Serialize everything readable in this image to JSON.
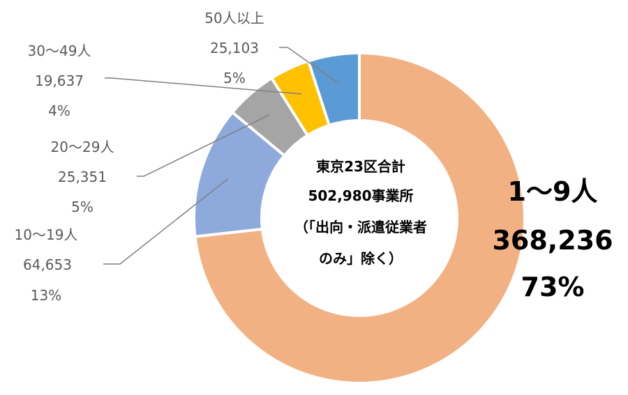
{
  "chart_data": {
    "type": "pie",
    "donut": true,
    "center_text": [
      "東京23区合計",
      "502,980事業所",
      "（「出向・派遣従業者",
      "のみ」除く）"
    ],
    "categories": [
      "1～9人",
      "10～19人",
      "20～29人",
      "30～49人",
      "50人以上"
    ],
    "values": [
      368236,
      64653,
      25351,
      19637,
      25103
    ],
    "value_labels": [
      "368,236",
      "64,653",
      "25,351",
      "19,637",
      "25,103"
    ],
    "percent_labels": [
      "73%",
      "13%",
      "5%",
      "4%",
      "5%"
    ],
    "colors": [
      "#F2B183",
      "#8EA9DB",
      "#A5A5A5",
      "#FFC000",
      "#5B9BD5"
    ],
    "label_color": "#595959",
    "legend": false
  }
}
